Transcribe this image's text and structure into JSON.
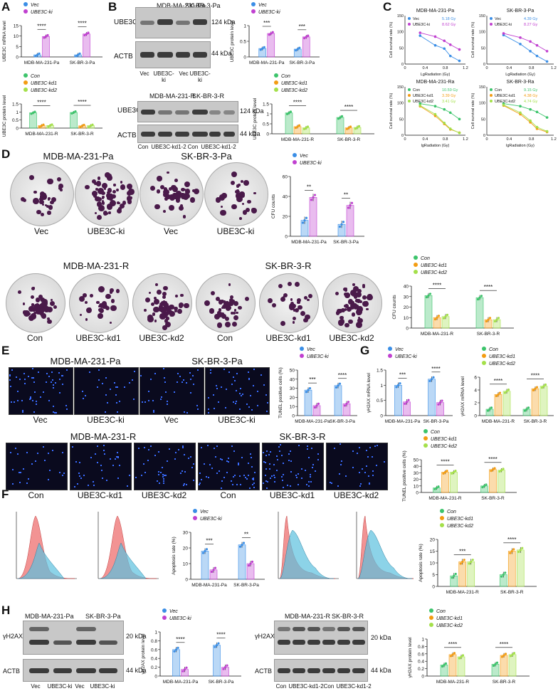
{
  "panels": {
    "A": "A",
    "B": "B",
    "C": "C",
    "D": "D",
    "E": "E",
    "F": "F",
    "G": "G",
    "H": "H"
  },
  "legends": {
    "vec_ki": [
      {
        "name": "Vec",
        "color": "#3a8ee6"
      },
      {
        "name": "UBE3C-ki",
        "color": "#c040d0"
      }
    ],
    "con_kd": [
      {
        "name": "Con",
        "color": "#3cc46b"
      },
      {
        "name": "UBE3C-kd1",
        "color": "#f39c12"
      },
      {
        "name": "UBE3C-kd2",
        "color": "#a4e04a"
      }
    ],
    "survival_pa1": [
      {
        "name": "Vec",
        "value": "5.18 Gy",
        "color": "#3a8ee6"
      },
      {
        "name": "UBE3C-ki",
        "value": "8.62 Gy",
        "color": "#c040d0"
      }
    ],
    "survival_pa2": [
      {
        "name": "Vec",
        "value": "4.39 Gy",
        "color": "#3a8ee6"
      },
      {
        "name": "UBE3C-ki",
        "value": "8.27 Gy",
        "color": "#c040d0"
      }
    ],
    "survival_ra1": [
      {
        "name": "Con",
        "value": "10.59 Gy",
        "color": "#3cc46b"
      },
      {
        "name": "UBE3C-kd1",
        "value": "3.39 Gy",
        "color": "#f39c12"
      },
      {
        "name": "UBE3C-kd2",
        "value": "3.41 Gy",
        "color": "#a4e04a"
      }
    ],
    "survival_ra2": [
      {
        "name": "Con",
        "value": "9.15 Gy",
        "color": "#3cc46b"
      },
      {
        "name": "UBE3C-kd1",
        "value": "4.38 Gy",
        "color": "#f39c12"
      },
      {
        "name": "UBE3C-kd2",
        "value": "4.74 Gy",
        "color": "#a4e04a"
      }
    ]
  },
  "blots": {
    "B_top": {
      "header": [
        "MDB-MA-231-Pa",
        "SK-BR-3-Pa"
      ],
      "rows": [
        "UBE3C",
        "ACTB"
      ],
      "kda": [
        "124 kDa",
        "44 kDa"
      ],
      "lanes": [
        "Vec",
        "UBE3C-ki",
        "Vec",
        "UBE3C-ki"
      ]
    },
    "B_bot": {
      "header": [
        "MDB-MA-231-R",
        "SK-BR-3-R"
      ],
      "rows": [
        "UBE3C",
        "ACTB"
      ],
      "kda": [
        "124 kDa",
        "44 kDa"
      ],
      "lanes": [
        "Con",
        "UBE3C-kd1-2",
        "Con",
        "UBE3C-kd1-2"
      ]
    },
    "H_left": {
      "header": [
        "MDB-MA-231-Pa",
        "SK-BR-3-Pa"
      ],
      "rows": [
        "γH2AX",
        "ACTB"
      ],
      "kda": [
        "20 kDa",
        "44 kDa"
      ],
      "lanes": [
        "Vec",
        "UBE3C-ki",
        "Vec",
        "UBE3C-ki"
      ]
    },
    "H_right": {
      "header": [
        "MDB-MA-231-R",
        "SK-BR-3-R"
      ],
      "rows": [
        "γH2AX",
        "ACTB"
      ],
      "kda": [
        "20 kDa",
        "44 kDa"
      ],
      "lanes": [
        "Con",
        "UBE3C-kd1-2",
        "Con",
        "UBE3C-kd1-2"
      ]
    }
  },
  "images": {
    "D_top_title": [
      "MDB-MA-231-Pa",
      "SK-BR-3-Pa"
    ],
    "D_top_labels": [
      "Vec",
      "UBE3C-ki",
      "Vec",
      "UBE3C-ki"
    ],
    "D_bot_title": [
      "MDB-MA-231-R",
      "SK-BR-3-R"
    ],
    "D_bot_labels": [
      "Con",
      "UBE3C-kd1",
      "UBE3C-kd2",
      "Con",
      "UBE3C-kd1",
      "UBE3C-kd2"
    ],
    "E_top_title": [
      "MDB-MA-231-Pa",
      "SK-BR-3-Pa"
    ],
    "E_top_labels": [
      "Vec",
      "UBE3C-ki",
      "Vec",
      "UBE3C-ki"
    ],
    "E_bot_title": [
      "MDB-MA-231-R",
      "SK-BR-3-R"
    ],
    "E_bot_labels": [
      "Con",
      "UBE3C-kd1",
      "UBE3C-kd2",
      "Con",
      "UBE3C-kd1",
      "UBE3C-kd2"
    ]
  },
  "chart_data": [
    {
      "id": "A1",
      "type": "bar",
      "ylabel": "UBE3C mRNA level",
      "categories": [
        "MDB-MA-231-Pa",
        "SK-BR-3-Pa"
      ],
      "ylim": [
        0,
        15
      ],
      "yticks": [
        0,
        5,
        10,
        15
      ],
      "series": [
        {
          "name": "Vec",
          "values": [
            1,
            1
          ]
        },
        {
          "name": "UBE3C-ki",
          "values": [
            9.8,
            11
          ]
        }
      ],
      "sig": [
        "****",
        "****"
      ],
      "legend": "vec_ki"
    },
    {
      "id": "A2",
      "type": "bar",
      "ylabel": "UBE3C protein level",
      "categories": [
        "MDB-MA-231-R",
        "SK-BR-3-R"
      ],
      "ylim": [
        0,
        1.5
      ],
      "yticks": [
        0,
        0.5,
        1.0,
        1.5
      ],
      "series": [
        {
          "name": "Con",
          "values": [
            0.95,
            0.97
          ]
        },
        {
          "name": "UBE3C-kd1",
          "values": [
            0.15,
            0.14
          ]
        },
        {
          "name": "UBE3C-kd2",
          "values": [
            0.16,
            0.15
          ]
        }
      ],
      "sig": [
        "****",
        "****"
      ],
      "legend": "con_kd"
    },
    {
      "id": "B1",
      "type": "bar",
      "ylabel": "UBE3C protein level",
      "categories": [
        "MDB-MA-231-Pa",
        "SK-BR-3-Pa"
      ],
      "ylim": [
        0,
        1.0
      ],
      "yticks": [
        0,
        0.5,
        1.0
      ],
      "series": [
        {
          "name": "Vec",
          "values": [
            0.27,
            0.25
          ]
        },
        {
          "name": "UBE3C-ki",
          "values": [
            0.75,
            0.64
          ]
        }
      ],
      "sig": [
        "***",
        "***"
      ],
      "legend": "vec_ki"
    },
    {
      "id": "B2",
      "type": "bar",
      "ylabel": "UBE3C protein level",
      "categories": [
        "MDB-MA-231-R",
        "SK-BR-3-R"
      ],
      "ylim": [
        0,
        1.5
      ],
      "yticks": [
        0,
        0.5,
        1.0,
        1.5
      ],
      "series": [
        {
          "name": "Con",
          "values": [
            1.05,
            0.82
          ]
        },
        {
          "name": "UBE3C-kd1",
          "values": [
            0.36,
            0.3
          ]
        },
        {
          "name": "UBE3C-kd2",
          "values": [
            0.3,
            0.32
          ]
        }
      ],
      "sig": [
        "****",
        "****"
      ],
      "legend": "con_kd"
    },
    {
      "id": "C1",
      "type": "line",
      "title": "MDB-MA-231-Pa",
      "xlabel": "LgRadiation (Gy)",
      "ylabel": "Cell survival rate (%)",
      "xlim": [
        0,
        1.2
      ],
      "ylim": [
        0,
        150
      ],
      "xticks": [
        0,
        0.4,
        0.8,
        1.2
      ],
      "yticks": [
        0,
        50,
        100,
        150
      ],
      "series": [
        {
          "name": "Vec",
          "x": [
            0.3,
            0.6,
            0.78,
            0.9,
            1.08
          ],
          "y": [
            88,
            58,
            48,
            25,
            10
          ]
        },
        {
          "name": "UBE3C-ki",
          "x": [
            0.3,
            0.6,
            0.78,
            0.9,
            1.08
          ],
          "y": [
            97,
            85,
            72,
            60,
            45
          ]
        }
      ],
      "legend": "survival_pa1"
    },
    {
      "id": "C2",
      "type": "line",
      "title": "SK-BR-3-Pa",
      "xlabel": "LgRadiation (Gy)",
      "ylabel": "Cell survival rate (%)",
      "xlim": [
        0,
        1.2
      ],
      "ylim": [
        0,
        150
      ],
      "xticks": [
        0,
        0.4,
        0.8,
        1.2
      ],
      "yticks": [
        0,
        50,
        100,
        150
      ],
      "series": [
        {
          "name": "Vec",
          "x": [
            0.3,
            0.6,
            0.78,
            0.9,
            1.08
          ],
          "y": [
            90,
            62,
            40,
            25,
            8
          ]
        },
        {
          "name": "UBE3C-ki",
          "x": [
            0.3,
            0.6,
            0.78,
            0.9,
            1.08
          ],
          "y": [
            95,
            82,
            70,
            58,
            40
          ]
        }
      ],
      "legend": "survival_pa2"
    },
    {
      "id": "C3",
      "type": "line",
      "title": "MDB-MA-231-Ra",
      "xlabel": "lgRadiation (Gy)",
      "ylabel": "Cell survival rate (%)",
      "xlim": [
        0,
        1.2
      ],
      "ylim": [
        0,
        150
      ],
      "xticks": [
        0,
        0.4,
        0.8,
        1.2
      ],
      "yticks": [
        0,
        50,
        100,
        150
      ],
      "series": [
        {
          "name": "Con",
          "x": [
            0.3,
            0.6,
            0.78,
            0.9,
            1.08
          ],
          "y": [
            98,
            90,
            80,
            70,
            50
          ]
        },
        {
          "name": "UBE3C-kd1",
          "x": [
            0.3,
            0.6,
            0.78,
            0.9,
            1.08
          ],
          "y": [
            90,
            60,
            35,
            18,
            8
          ]
        },
        {
          "name": "UBE3C-kd2",
          "x": [
            0.3,
            0.6,
            0.78,
            0.9,
            1.08
          ],
          "y": [
            92,
            65,
            38,
            20,
            7
          ]
        }
      ],
      "legend": "survival_ra1"
    },
    {
      "id": "C4",
      "type": "line",
      "title": "SK-BR-3-Ra",
      "xlabel": "lgRadiation (Gy)",
      "ylabel": "Cell survival rate (%)",
      "xlim": [
        0,
        1.2
      ],
      "ylim": [
        0,
        150
      ],
      "xticks": [
        0,
        0.4,
        0.8,
        1.2
      ],
      "yticks": [
        0,
        50,
        100,
        150
      ],
      "series": [
        {
          "name": "Con",
          "x": [
            0.3,
            0.6,
            0.78,
            0.9,
            1.08
          ],
          "y": [
            98,
            90,
            80,
            72,
            55
          ]
        },
        {
          "name": "UBE3C-kd1",
          "x": [
            0.3,
            0.6,
            0.78,
            0.9,
            1.08
          ],
          "y": [
            92,
            65,
            40,
            20,
            10
          ]
        },
        {
          "name": "UBE3C-kd2",
          "x": [
            0.3,
            0.6,
            0.78,
            0.9,
            1.08
          ],
          "y": [
            94,
            70,
            45,
            25,
            12
          ]
        }
      ],
      "legend": "survival_ra2"
    },
    {
      "id": "D1",
      "type": "bar",
      "ylabel": "CFU counts",
      "categories": [
        "MDB-MA-231-Pa",
        "SK-BR-3-Pa"
      ],
      "ylim": [
        0,
        60
      ],
      "yticks": [
        0,
        20,
        40,
        60
      ],
      "series": [
        {
          "name": "Vec",
          "values": [
            16,
            12
          ]
        },
        {
          "name": "UBE3C-ki",
          "values": [
            39,
            31
          ]
        }
      ],
      "sig": [
        "**",
        "**"
      ],
      "legend": "vec_ki"
    },
    {
      "id": "D2",
      "type": "bar",
      "ylabel": "CFU counts",
      "categories": [
        "MDB-MA-231-R",
        "SK-BR-3-R"
      ],
      "ylim": [
        0,
        40
      ],
      "yticks": [
        0,
        10,
        20,
        30,
        40
      ],
      "series": [
        {
          "name": "Con",
          "values": [
            31,
            29
          ]
        },
        {
          "name": "UBE3C-kd1",
          "values": [
            10,
            8
          ]
        },
        {
          "name": "UBE3C-kd2",
          "values": [
            11,
            8
          ]
        }
      ],
      "sig": [
        "****",
        "****"
      ],
      "legend": "con_kd"
    },
    {
      "id": "E1",
      "type": "bar",
      "ylabel": "TUNEL positive cells (%)",
      "categories": [
        "MDB-MA-231-Pa",
        "SK-BR-3-Pa"
      ],
      "ylim": [
        0,
        50
      ],
      "yticks": [
        0,
        10,
        20,
        30,
        40,
        50
      ],
      "series": [
        {
          "name": "Vec",
          "values": [
            28,
            33
          ]
        },
        {
          "name": "UBE3C-ki",
          "values": [
            11,
            13
          ]
        }
      ],
      "sig": [
        "***",
        "****"
      ],
      "legend": "vec_ki"
    },
    {
      "id": "E2",
      "type": "bar",
      "ylabel": "TUNEL positive cells (%)",
      "categories": [
        "MDB-MA-231-R",
        "SK-BR-3-R"
      ],
      "ylim": [
        0,
        50
      ],
      "yticks": [
        0,
        10,
        20,
        30,
        40,
        50
      ],
      "series": [
        {
          "name": "Con",
          "values": [
            7,
            10
          ]
        },
        {
          "name": "UBE3C-kd1",
          "values": [
            31,
            35
          ]
        },
        {
          "name": "UBE3C-kd2",
          "values": [
            31,
            34
          ]
        }
      ],
      "sig": [
        "****",
        "****"
      ],
      "legend": "con_kd"
    },
    {
      "id": "F1",
      "type": "bar",
      "ylabel": "Apoptosis rate (%)",
      "categories": [
        "MDB-MA-231-Pa",
        "SK-BR-3-Pa"
      ],
      "ylim": [
        0,
        30
      ],
      "yticks": [
        0,
        10,
        20,
        30
      ],
      "series": [
        {
          "name": "Vec",
          "values": [
            18,
            22
          ]
        },
        {
          "name": "UBE3C-ki",
          "values": [
            6,
            10
          ]
        }
      ],
      "sig": [
        "***",
        "**"
      ],
      "legend": "vec_ki"
    },
    {
      "id": "F2",
      "type": "bar",
      "ylabel": "Apoptosis rate (%)",
      "categories": [
        "MDB-MA-231-R",
        "SK-BR-3-R"
      ],
      "ylim": [
        0,
        20
      ],
      "yticks": [
        0,
        5,
        10,
        15,
        20
      ],
      "series": [
        {
          "name": "Con",
          "values": [
            4.5,
            5
          ]
        },
        {
          "name": "UBE3C-kd1",
          "values": [
            10.5,
            15
          ]
        },
        {
          "name": "UBE3C-kd2",
          "values": [
            10.5,
            15.5
          ]
        }
      ],
      "sig": [
        "***",
        "****"
      ],
      "legend": "con_kd"
    },
    {
      "id": "G1",
      "type": "bar",
      "ylabel": "γH2AX mRNA level",
      "categories": [
        "MDB-MA-231-Pa",
        "SK-BR-3-Pa"
      ],
      "ylim": [
        0,
        1.5
      ],
      "yticks": [
        0,
        0.5,
        1.0,
        1.5
      ],
      "series": [
        {
          "name": "Vec",
          "values": [
            1.0,
            1.2
          ]
        },
        {
          "name": "UBE3C-ki",
          "values": [
            0.45,
            0.43
          ]
        }
      ],
      "sig": [
        "***",
        "****"
      ],
      "legend": "vec_ki"
    },
    {
      "id": "G2",
      "type": "bar",
      "ylabel": "γH2AX mRNA level",
      "categories": [
        "MDB-MA-231-R",
        "SK-BR-3-R"
      ],
      "ylim": [
        0,
        6
      ],
      "yticks": [
        0,
        2,
        4,
        6
      ],
      "series": [
        {
          "name": "Con",
          "values": [
            1,
            1
          ]
        },
        {
          "name": "UBE3C-kd1",
          "values": [
            3.3,
            4.2
          ]
        },
        {
          "name": "UBE3C-kd2",
          "values": [
            3.8,
            4.6
          ]
        }
      ],
      "sig": [
        "****",
        "****"
      ],
      "legend": "con_kd"
    },
    {
      "id": "H1",
      "type": "bar",
      "ylabel": "γH2AX protein level",
      "categories": [
        "MDB-MA-231-Pa",
        "SK-BR-3-Pa"
      ],
      "ylim": [
        0,
        1.0
      ],
      "yticks": [
        0,
        0.2,
        0.4,
        0.6,
        0.8,
        1.0
      ],
      "series": [
        {
          "name": "Vec",
          "values": [
            0.6,
            0.7
          ]
        },
        {
          "name": "UBE3C-ki",
          "values": [
            0.15,
            0.2
          ]
        }
      ],
      "sig": [
        "****",
        "****"
      ],
      "legend": "vec_ki"
    },
    {
      "id": "H2",
      "type": "bar",
      "ylabel": "γH2AX protein level",
      "categories": [
        "MDB-MA-231-R",
        "SK-BR-3-R"
      ],
      "ylim": [
        0,
        1.0
      ],
      "yticks": [
        0,
        0.2,
        0.4,
        0.6,
        0.8,
        1.0
      ],
      "series": [
        {
          "name": "Con",
          "values": [
            0.3,
            0.32
          ]
        },
        {
          "name": "UBE3C-kd1",
          "values": [
            0.58,
            0.56
          ]
        },
        {
          "name": "UBE3C-kd2",
          "values": [
            0.52,
            0.58
          ]
        }
      ],
      "sig": [
        "****",
        "****"
      ],
      "legend": "con_kd"
    }
  ]
}
